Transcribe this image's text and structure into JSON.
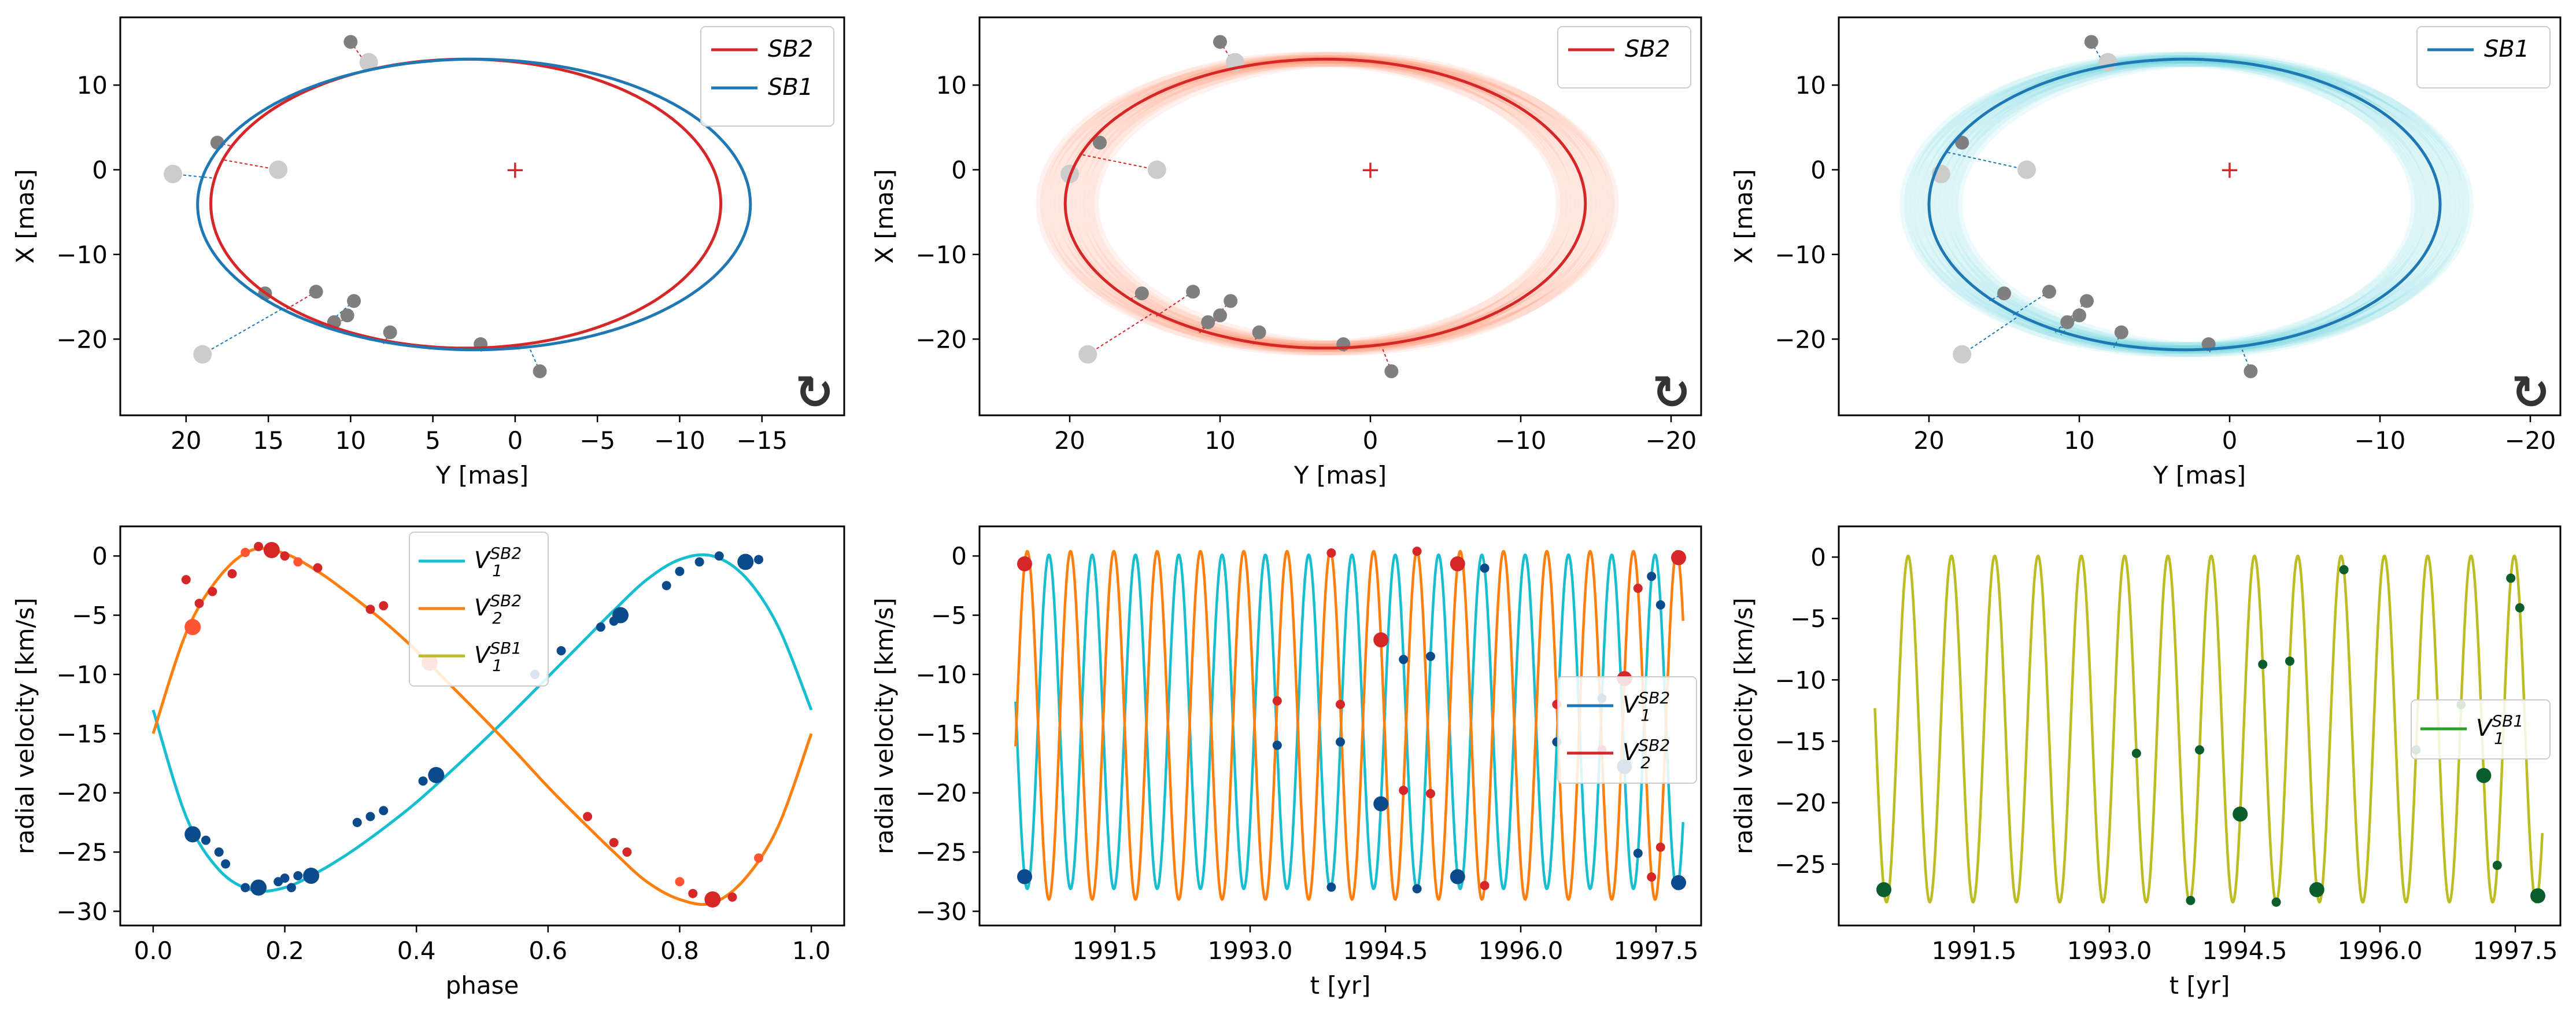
{
  "figure": {
    "description_title": ""
  },
  "chart_data": [
    {
      "id": "orbit_both",
      "type": "line",
      "xlabel": "Y [mas]",
      "ylabel": "X [mas]",
      "xlim": [
        24,
        -20
      ],
      "ylim": [
        -29,
        18
      ],
      "xticks": [
        20,
        15,
        10,
        5,
        0,
        -5,
        -10,
        -15
      ],
      "yticks": [
        -20,
        -10,
        0,
        10
      ],
      "xtick_labels": [
        "20",
        "15",
        "10",
        "5",
        "0",
        "−5",
        "−10",
        "−15"
      ],
      "ytick_labels": [
        "−20",
        "−10",
        "0",
        "10"
      ],
      "direction_glyph": "↻",
      "center_marker": "+",
      "series": [
        {
          "name": "SB2",
          "color": "#d62728",
          "ellipse": {
            "cx": 3.0,
            "cy": -4.0,
            "ax": 15.5,
            "ay": 17.5,
            "rot": 0
          }
        },
        {
          "name": "SB1",
          "color": "#1f77b4",
          "ellipse": {
            "cx": 2.5,
            "cy": -4.1,
            "ax": 16.8,
            "ay": 17.6,
            "rot": 0
          }
        }
      ],
      "legend": [
        "SB2",
        "SB1"
      ],
      "observations": [
        [
          10.0,
          15.1
        ],
        [
          8.9,
          12.7
        ],
        [
          18.1,
          3.2
        ],
        [
          20.8,
          -0.5
        ],
        [
          14.4,
          0.0
        ],
        [
          15.2,
          -14.6
        ],
        [
          12.1,
          -14.4
        ],
        [
          9.8,
          -15.5
        ],
        [
          10.2,
          -17.2
        ],
        [
          11.0,
          -18.0
        ],
        [
          7.6,
          -19.2
        ],
        [
          19.0,
          -21.8
        ],
        [
          2.1,
          -20.6
        ],
        [
          -1.5,
          -23.8
        ]
      ]
    },
    {
      "id": "orbit_sb2",
      "type": "line",
      "xlabel": "Y [mas]",
      "ylabel": "X [mas]",
      "xlim": [
        26,
        -22
      ],
      "ylim": [
        -29,
        18
      ],
      "xticks": [
        20,
        10,
        0,
        -10,
        -20
      ],
      "yticks": [
        -20,
        -10,
        0,
        10
      ],
      "xtick_labels": [
        "20",
        "10",
        "0",
        "−10",
        "−20"
      ],
      "ytick_labels": [
        "−20",
        "−10",
        "0",
        "10"
      ],
      "direction_glyph": "↻",
      "center_marker": "+",
      "series": [
        {
          "name": "SB2",
          "color": "#d62728",
          "ellipse": {
            "cx": 3.0,
            "cy": -4.0,
            "ax": 17.3,
            "ay": 17.5,
            "rot": 0
          }
        }
      ],
      "legend": [
        "SB2"
      ],
      "band_color": "#ff5a2a",
      "observations": [
        [
          10.0,
          15.1
        ],
        [
          9.0,
          12.7
        ],
        [
          18.0,
          3.2
        ],
        [
          20.0,
          -0.5
        ],
        [
          14.2,
          0.0
        ],
        [
          15.2,
          -14.6
        ],
        [
          11.8,
          -14.4
        ],
        [
          9.3,
          -15.5
        ],
        [
          10.0,
          -17.2
        ],
        [
          10.8,
          -18.0
        ],
        [
          7.4,
          -19.2
        ],
        [
          18.8,
          -21.8
        ],
        [
          1.8,
          -20.6
        ],
        [
          -1.4,
          -23.8
        ]
      ]
    },
    {
      "id": "orbit_sb1",
      "type": "line",
      "xlabel": "Y [mas]",
      "ylabel": "X [mas]",
      "xlim": [
        26,
        -22
      ],
      "ylim": [
        -29,
        18
      ],
      "xticks": [
        20,
        10,
        0,
        -10,
        -20
      ],
      "yticks": [
        -20,
        -10,
        0,
        10
      ],
      "xtick_labels": [
        "20",
        "10",
        "0",
        "−10",
        "−20"
      ],
      "ytick_labels": [
        "−20",
        "−10",
        "0",
        "10"
      ],
      "direction_glyph": "↻",
      "center_marker": "+",
      "series": [
        {
          "name": "SB1",
          "color": "#1f77b4",
          "ellipse": {
            "cx": 3.0,
            "cy": -4.1,
            "ax": 17.0,
            "ay": 17.6,
            "rot": 0
          }
        }
      ],
      "legend": [
        "SB1"
      ],
      "band_color": "#17becf",
      "observations": [
        [
          9.2,
          15.1
        ],
        [
          8.1,
          12.7
        ],
        [
          17.8,
          3.2
        ],
        [
          19.2,
          -0.5
        ],
        [
          13.5,
          0.0
        ],
        [
          15.0,
          -14.6
        ],
        [
          12.0,
          -14.4
        ],
        [
          9.5,
          -15.5
        ],
        [
          10.0,
          -17.2
        ],
        [
          10.8,
          -18.0
        ],
        [
          7.2,
          -19.2
        ],
        [
          17.8,
          -21.8
        ],
        [
          1.4,
          -20.6
        ],
        [
          -1.4,
          -23.8
        ]
      ]
    },
    {
      "id": "rv_phase",
      "type": "line",
      "xlabel": "phase",
      "ylabel": "radial velocity [km/s]",
      "xlim": [
        -0.05,
        1.05
      ],
      "ylim": [
        -31.2,
        2.5
      ],
      "xticks": [
        0.0,
        0.2,
        0.4,
        0.6,
        0.8,
        1.0
      ],
      "yticks": [
        -30,
        -25,
        -20,
        -15,
        -10,
        -5,
        0
      ],
      "xtick_labels": [
        "0.0",
        "0.2",
        "0.4",
        "0.6",
        "0.8",
        "1.0"
      ],
      "ytick_labels": [
        "−30",
        "−25",
        "−20",
        "−15",
        "−10",
        "−5",
        "0"
      ],
      "legend": [
        {
          "base": "V",
          "sub": "1",
          "sup": "SB2",
          "color": "#17becf"
        },
        {
          "base": "V",
          "sub": "2",
          "sup": "SB2",
          "color": "#ff7f0e"
        },
        {
          "base": "V",
          "sub": "1",
          "sup": "SB1",
          "color": "#bcbd22"
        }
      ],
      "series": [
        {
          "name": "V1 SB2",
          "color": "#17becf",
          "x": [
            0,
            0.05,
            0.1,
            0.15,
            0.2,
            0.25,
            0.3,
            0.35,
            0.4,
            0.45,
            0.5,
            0.55,
            0.6,
            0.65,
            0.7,
            0.75,
            0.8,
            0.85,
            0.9,
            0.95,
            1.0
          ],
          "y": [
            -13,
            -22,
            -26.5,
            -28.2,
            -28,
            -26.7,
            -25,
            -23,
            -20.8,
            -18.3,
            -15.7,
            -13,
            -10.2,
            -7.4,
            -4.6,
            -2,
            -0.3,
            0,
            -1.8,
            -6,
            -13
          ]
        },
        {
          "name": "V2 SB2",
          "color": "#ff7f0e",
          "x": [
            0,
            0.05,
            0.1,
            0.15,
            0.2,
            0.25,
            0.3,
            0.35,
            0.4,
            0.45,
            0.5,
            0.55,
            0.6,
            0.65,
            0.7,
            0.75,
            0.8,
            0.85,
            0.9,
            0.95,
            1.0
          ],
          "y": [
            -15,
            -6.5,
            -1.8,
            0.5,
            0.2,
            -1.3,
            -3.3,
            -5.5,
            -8,
            -10.8,
            -13.6,
            -16.5,
            -19.5,
            -22.3,
            -25,
            -27.5,
            -29,
            -29.3,
            -27.2,
            -22.8,
            -15
          ]
        }
      ],
      "observations": {
        "V1": [
          [
            0.06,
            -23.5
          ],
          [
            0.08,
            -24
          ],
          [
            0.1,
            -25
          ],
          [
            0.11,
            -26
          ],
          [
            0.14,
            -28
          ],
          [
            0.16,
            -28
          ],
          [
            0.19,
            -27.5
          ],
          [
            0.2,
            -27.2
          ],
          [
            0.21,
            -28
          ],
          [
            0.22,
            -27
          ],
          [
            0.24,
            -27
          ],
          [
            0.31,
            -22.5
          ],
          [
            0.33,
            -22
          ],
          [
            0.35,
            -21.5
          ],
          [
            0.41,
            -19
          ],
          [
            0.43,
            -18.5
          ],
          [
            0.58,
            -10
          ],
          [
            0.62,
            -8
          ],
          [
            0.68,
            -6
          ],
          [
            0.7,
            -5.5
          ],
          [
            0.71,
            -5
          ],
          [
            0.78,
            -2.5
          ],
          [
            0.8,
            -1.3
          ],
          [
            0.83,
            -0.5
          ],
          [
            0.86,
            0
          ],
          [
            0.9,
            -0.5
          ],
          [
            0.92,
            -0.3
          ]
        ],
        "V2": [
          [
            0.05,
            -2
          ],
          [
            0.06,
            -6
          ],
          [
            0.07,
            -4
          ],
          [
            0.09,
            -3
          ],
          [
            0.12,
            -1.5
          ],
          [
            0.14,
            0.3
          ],
          [
            0.16,
            0.8
          ],
          [
            0.18,
            0.5
          ],
          [
            0.2,
            0
          ],
          [
            0.22,
            -0.5
          ],
          [
            0.25,
            -1
          ],
          [
            0.33,
            -4.5
          ],
          [
            0.35,
            -4.2
          ],
          [
            0.42,
            -9
          ],
          [
            0.66,
            -22
          ],
          [
            0.7,
            -24.2
          ],
          [
            0.72,
            -25
          ],
          [
            0.8,
            -27.5
          ],
          [
            0.82,
            -28.5
          ],
          [
            0.85,
            -29
          ],
          [
            0.88,
            -28.8
          ],
          [
            0.92,
            -25.5
          ]
        ]
      }
    },
    {
      "id": "rv_time_sb2",
      "type": "line",
      "xlabel": "t [yr]",
      "ylabel": "radial velocity [km/s]",
      "xlim": [
        1990.0,
        1998.0
      ],
      "ylim": [
        -31.2,
        2.5
      ],
      "xticks": [
        1991.5,
        1993.0,
        1994.5,
        1996.0,
        1997.5
      ],
      "yticks": [
        -30,
        -25,
        -20,
        -15,
        -10,
        -5,
        0
      ],
      "xtick_labels": [
        "1991.5",
        "1993.0",
        "1994.5",
        "1996.0",
        "1997.5"
      ],
      "ytick_labels": [
        "−30",
        "−25",
        "−20",
        "−15",
        "−10",
        "−5",
        "0"
      ],
      "legend": [
        {
          "base": "V",
          "sub": "1",
          "sup": "SB2",
          "color": "#1f77b4"
        },
        {
          "base": "V",
          "sub": "2",
          "sup": "SB2",
          "color": "#d62728"
        }
      ],
      "period_yr": 0.48,
      "t_start": 1990.4,
      "t_end": 1997.8,
      "series": [
        {
          "name": "V1 SB2",
          "color": "#17becf",
          "amplitude": 14.1,
          "offset": -14.0,
          "phase": 0.0
        },
        {
          "name": "V2 SB2",
          "color": "#ff7f0e",
          "amplitude": 14.7,
          "offset": -14.3,
          "phase": 0.5
        }
      ]
    },
    {
      "id": "rv_time_sb1",
      "type": "line",
      "xlabel": "t [yr]",
      "ylabel": "radial velocity [km/s]",
      "xlim": [
        1990.0,
        1998.0
      ],
      "ylim": [
        -30.0,
        2.5
      ],
      "xticks": [
        1991.5,
        1993.0,
        1994.5,
        1996.0,
        1997.5
      ],
      "yticks": [
        -25,
        -20,
        -15,
        -10,
        -5,
        0
      ],
      "xtick_labels": [
        "1991.5",
        "1993.0",
        "1994.5",
        "1996.0",
        "1997.5"
      ],
      "ytick_labels": [
        "−25",
        "−20",
        "−15",
        "−10",
        "−5",
        "0"
      ],
      "legend": [
        {
          "base": "V",
          "sub": "1",
          "sup": "SB1",
          "color": "#2ca02c"
        }
      ],
      "period_yr": 0.48,
      "t_start": 1990.4,
      "t_end": 1997.8,
      "series": [
        {
          "name": "V1 SB1",
          "color": "#bcbd22",
          "amplitude": 14.1,
          "offset": -14.0,
          "phase": 0.0
        }
      ]
    }
  ]
}
